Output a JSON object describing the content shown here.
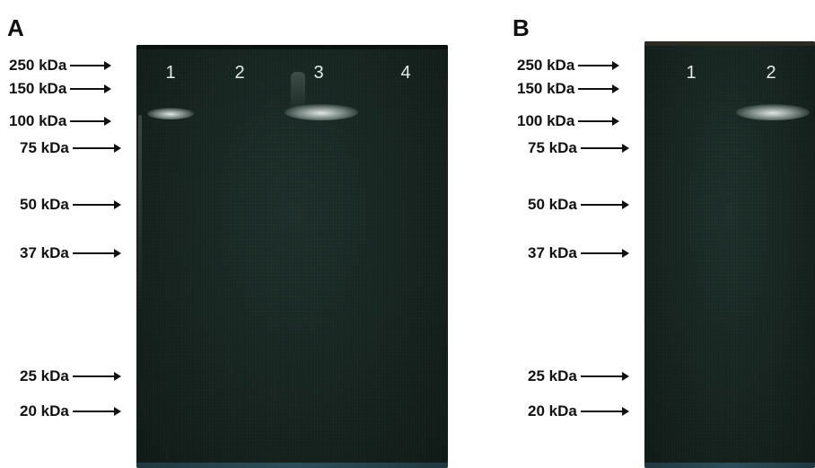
{
  "panels": [
    {
      "letter": "A",
      "lanes": [
        "1",
        "2",
        "3",
        "4"
      ],
      "markers": [
        "250 kDa",
        "150 kDa",
        "100 kDa",
        "75 kDa",
        "50 kDa",
        "37 kDa",
        "25 kDa",
        "20 kDa"
      ]
    },
    {
      "letter": "B",
      "lanes": [
        "1",
        "2"
      ],
      "markers": [
        "250 kDa",
        "150 kDa",
        "100 kDa",
        "75 kDa",
        "50 kDa",
        "37 kDa",
        "25 kDa",
        "20 kDa"
      ]
    }
  ],
  "colors": {
    "gel": "#16231f",
    "band": "#e8eeec",
    "text": "#111111"
  }
}
